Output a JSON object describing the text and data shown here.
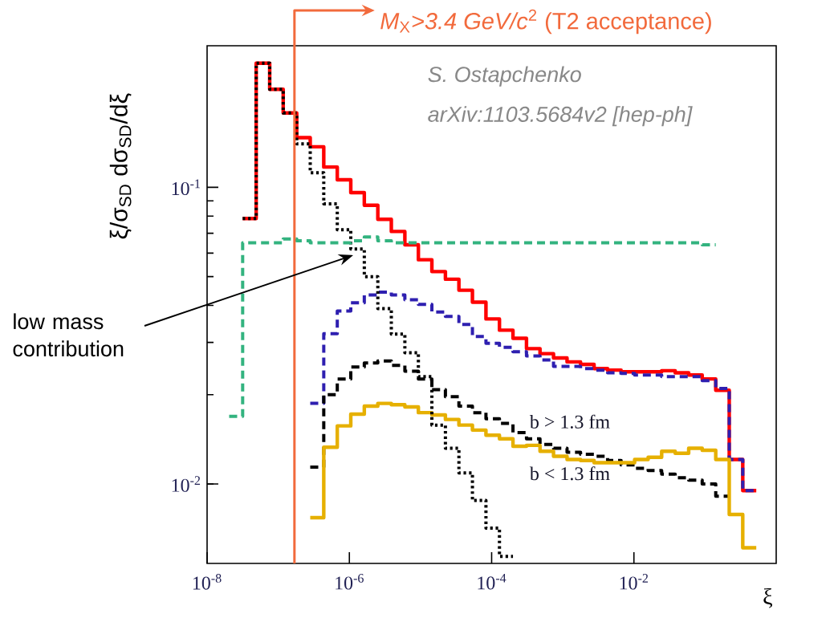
{
  "chart_data": {
    "type": "step",
    "xlabel": "ξ",
    "ylabel": "ξ/σ$_{SD}$ dσ$_{SD}$/dξ",
    "log": "xy",
    "xlim": [
      1e-08,
      1
    ],
    "ylim": [
      0.0054,
      0.3
    ],
    "xticks": [
      {
        "value": 1e-08,
        "label": "10$^{-8}$"
      },
      {
        "value": 1e-06,
        "label": "10$^{-6}$"
      },
      {
        "value": 0.0001,
        "label": "10$^{-4}$"
      },
      {
        "value": 0.01,
        "label": "10$^{-2}$"
      }
    ],
    "yticks": [
      {
        "value": 0.01,
        "label": "10$^{-2}$"
      },
      {
        "value": 0.1,
        "label": "10$^{-1}$"
      }
    ],
    "series": [
      {
        "color": "#ff0000",
        "line_style": "solid",
        "x": [
          3.162e-08,
          4.898e-08,
          7.586e-08,
          1.175e-07,
          1.82e-07,
          2.818e-07,
          4.365e-07,
          6.761e-07,
          1.047e-06,
          1.622e-06,
          2.512e-06,
          3.89e-06,
          6.026e-06,
          9.333e-06,
          1.445e-05,
          2.239e-05,
          3.467e-05,
          5.37e-05,
          8.318e-05,
          0.0001288,
          0.0001995,
          0.000309,
          0.0004786,
          0.0007413,
          0.001148,
          0.001778,
          0.002754,
          0.004266,
          0.006607,
          0.01023,
          0.01585,
          0.02455,
          0.03802,
          0.05888,
          0.0912,
          0.1413,
          0.2188,
          0.3388,
          0.5248
        ],
        "values": [
          0.0785,
          0.262,
          0.214,
          0.178,
          0.147,
          0.137,
          0.117,
          0.106,
          0.096,
          0.087,
          0.078,
          0.071,
          0.064,
          0.057,
          0.052,
          0.049,
          0.045,
          0.041,
          0.036,
          0.033,
          0.031,
          0.0286,
          0.0275,
          0.0266,
          0.0258,
          0.0253,
          0.0245,
          0.0242,
          0.0239,
          0.0239,
          0.0239,
          0.0241,
          0.0237,
          0.0233,
          0.0226,
          0.0207,
          0.0121,
          0.0095,
          0.0095
        ]
      },
      {
        "color": "#2e1fb0",
        "line_style": "dashed",
        "x": [
          2.818e-07,
          4.365e-07,
          6.761e-07,
          1.047e-06,
          1.622e-06,
          2.512e-06,
          3.89e-06,
          6.026e-06,
          9.333e-06,
          1.445e-05,
          2.239e-05,
          3.467e-05,
          5.37e-05,
          8.318e-05,
          0.0001288,
          0.0001995,
          0.000309,
          0.0004786,
          0.0007413,
          0.001148,
          0.001778,
          0.002754,
          0.004266,
          0.006607,
          0.01023,
          0.01585,
          0.02455,
          0.03802,
          0.05888,
          0.0912,
          0.1413,
          0.2188,
          0.3388,
          0.5248
        ],
        "values": [
          0.0187,
          0.0321,
          0.0383,
          0.0408,
          0.0434,
          0.0443,
          0.0434,
          0.0418,
          0.0403,
          0.038,
          0.0367,
          0.0345,
          0.0314,
          0.0298,
          0.0289,
          0.0279,
          0.027,
          0.0262,
          0.0249,
          0.0249,
          0.0245,
          0.0242,
          0.0237,
          0.0236,
          0.0233,
          0.0233,
          0.023,
          0.023,
          0.023,
          0.0223,
          0.021,
          0.0121,
          0.0095,
          0.0095
        ]
      },
      {
        "color": "#000000",
        "line_style": "dashed",
        "x": [
          2.818e-07,
          4.365e-07,
          6.761e-07,
          1.047e-06,
          1.622e-06,
          2.512e-06,
          3.89e-06,
          6.026e-06,
          9.333e-06,
          1.445e-05,
          2.239e-05,
          3.467e-05,
          5.37e-05,
          8.318e-05,
          0.0001288,
          0.0001995,
          0.000309,
          0.0004786,
          0.0007413,
          0.001148,
          0.001778,
          0.002754,
          0.004266,
          0.006607,
          0.01023,
          0.01585,
          0.02455,
          0.03802,
          0.05888,
          0.0912,
          0.1413,
          0.2188
        ],
        "values": [
          0.0114,
          0.02,
          0.0226,
          0.0248,
          0.0256,
          0.026,
          0.0251,
          0.024,
          0.0226,
          0.0208,
          0.0197,
          0.0183,
          0.0174,
          0.0166,
          0.016,
          0.0149,
          0.0142,
          0.0136,
          0.0132,
          0.0128,
          0.0126,
          0.0124,
          0.012,
          0.0116,
          0.0113,
          0.0111,
          0.0108,
          0.0105,
          0.0103,
          0.01,
          0.0091,
          0.0091
        ]
      },
      {
        "color": "#e6b000",
        "line_style": "solid",
        "x": [
          2.818e-07,
          4.365e-07,
          6.761e-07,
          1.047e-06,
          1.622e-06,
          2.512e-06,
          3.89e-06,
          6.026e-06,
          9.333e-06,
          1.445e-05,
          2.239e-05,
          3.467e-05,
          5.37e-05,
          8.318e-05,
          0.0001288,
          0.0001995,
          0.000309,
          0.0004786,
          0.0007413,
          0.001148,
          0.001778,
          0.002754,
          0.004266,
          0.006607,
          0.01023,
          0.01585,
          0.02455,
          0.03802,
          0.05888,
          0.0912,
          0.1413,
          0.2188,
          0.3388,
          0.5248
        ],
        "values": [
          0.0077,
          0.0133,
          0.0157,
          0.0172,
          0.0183,
          0.0187,
          0.0185,
          0.0182,
          0.0174,
          0.0171,
          0.0165,
          0.0158,
          0.0152,
          0.0146,
          0.0142,
          0.0134,
          0.0135,
          0.0129,
          0.0124,
          0.0121,
          0.012,
          0.0118,
          0.0118,
          0.0118,
          0.0121,
          0.0123,
          0.0129,
          0.0127,
          0.0132,
          0.013,
          0.0121,
          0.0079,
          0.0061,
          0.0061
        ]
      },
      {
        "color": "#000000",
        "line_style": "dotted",
        "x": [
          3.162e-08,
          4.898e-08,
          7.586e-08,
          1.175e-07,
          1.82e-07,
          2.818e-07,
          4.365e-07,
          6.761e-07,
          1.047e-06,
          1.622e-06,
          2.512e-06,
          3.89e-06,
          6.026e-06,
          9.333e-06,
          1.445e-05,
          2.239e-05,
          3.467e-05,
          5.37e-05,
          8.318e-05,
          0.0001288,
          0.0001995
        ],
        "values": [
          0.0785,
          0.262,
          0.214,
          0.178,
          0.14,
          0.112,
          0.088,
          0.072,
          0.062,
          0.05,
          0.039,
          0.032,
          0.0277,
          0.023,
          0.0158,
          0.0132,
          0.0109,
          0.0088,
          0.0071,
          0.0057,
          0.0057
        ]
      },
      {
        "color": "#33b37f",
        "line_style": "dashed",
        "x": [
          2.042e-08,
          3.162e-08,
          4.898e-08,
          7.586e-08,
          1.175e-07,
          1.82e-07,
          2.818e-07,
          4.365e-07,
          6.761e-07,
          1.047e-06,
          1.622e-06,
          2.512e-06,
          3.89e-06,
          6.026e-06,
          9.333e-06,
          1.445e-05,
          2.239e-05,
          3.467e-05,
          5.37e-05,
          8.318e-05,
          0.0001288,
          0.0001995,
          0.000309,
          0.0004786,
          0.0007413,
          0.001148,
          0.001778,
          0.002754,
          0.004266,
          0.006607,
          0.01023,
          0.01585,
          0.02455,
          0.03802,
          0.05888,
          0.0912,
          0.1413
        ],
        "values": [
          0.0169,
          0.065,
          0.065,
          0.065,
          0.067,
          0.066,
          0.065,
          0.065,
          0.065,
          0.066,
          0.068,
          0.066,
          0.065,
          0.065,
          0.065,
          0.065,
          0.065,
          0.065,
          0.065,
          0.065,
          0.065,
          0.065,
          0.065,
          0.065,
          0.065,
          0.065,
          0.065,
          0.065,
          0.065,
          0.065,
          0.065,
          0.065,
          0.065,
          0.065,
          0.065,
          0.064,
          0.064
        ]
      }
    ],
    "ref_lines": [
      {
        "axis": "x",
        "value": 1.69e-07,
        "label": "*M*$_{X}$*>3.4 GeV/c*$^{2}$ (T2 acceptance)",
        "color": "#f26a3c"
      }
    ],
    "annotations": [
      "low mass contribution",
      "b > 1.3 fm",
      "b < 1.3 fm",
      "*S. Ostapchenko*",
      "*arXiv:1103.5684v2 [hep-ph]*"
    ]
  }
}
